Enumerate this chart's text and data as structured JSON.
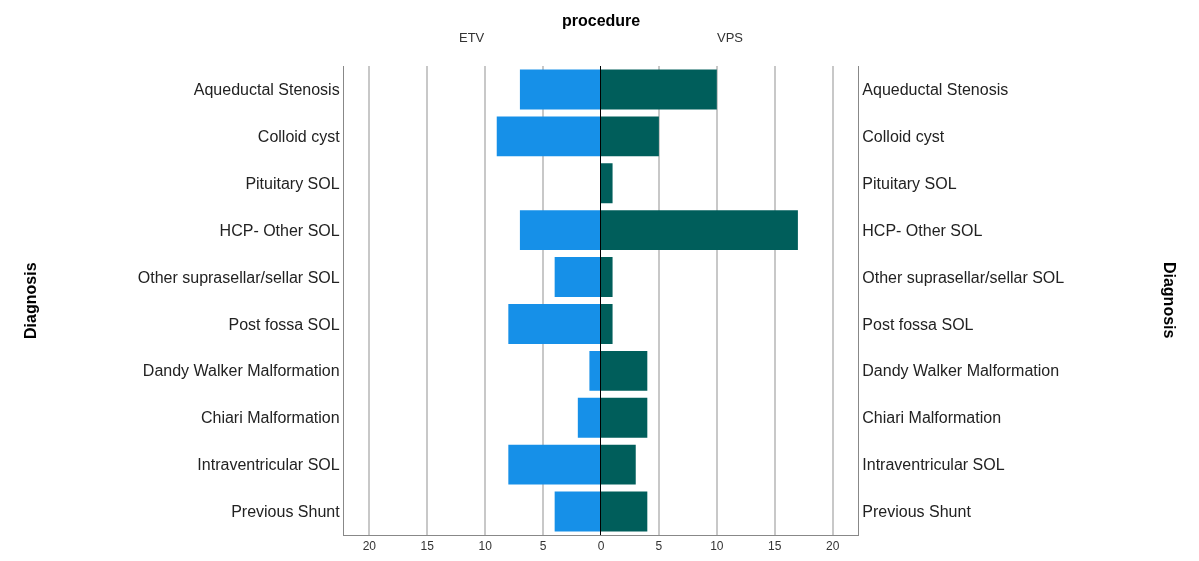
{
  "chart_data": [
    {
      "type": "bar",
      "orientation": "horizontal",
      "title": "procedure",
      "ylabel": "Diagnosis",
      "categories": [
        "Aqueductal Stenosis",
        "Colloid cyst",
        "Pituitary SOL",
        "HCP- Other SOL",
        "Other suprasellar/sellar SOL",
        "Post fossa SOL",
        "Dandy Walker Malformation",
        "Chiari Malformation",
        "Intraventricular SOL",
        "Previous Shunt"
      ],
      "series": [
        {
          "name": "ETV",
          "color": "#1690e8",
          "values": [
            7,
            9,
            0,
            7,
            4,
            8,
            1,
            2,
            8,
            4
          ]
        }
      ],
      "xlim": [
        22.2,
        0
      ],
      "xticks": [
        20,
        15,
        10,
        5,
        0
      ],
      "grid": "x"
    },
    {
      "type": "bar",
      "orientation": "horizontal",
      "ylabel": "Diagnosis",
      "categories": [
        "Aqueductal Stenosis",
        "Colloid cyst",
        "Pituitary SOL",
        "HCP- Other SOL",
        "Other suprasellar/sellar SOL",
        "Post fossa SOL",
        "Dandy Walker Malformation",
        "Chiari Malformation",
        "Intraventricular SOL",
        "Previous Shunt"
      ],
      "series": [
        {
          "name": "VPS",
          "color": "#005e5b",
          "values": [
            10,
            5,
            1,
            17,
            1,
            1,
            4,
            4,
            3,
            4
          ]
        }
      ],
      "xlim": [
        0,
        22.2
      ],
      "xticks": [
        {
          "value": 0,
          "label": null
        },
        5,
        10,
        15,
        20
      ],
      "grid": "x"
    }
  ]
}
